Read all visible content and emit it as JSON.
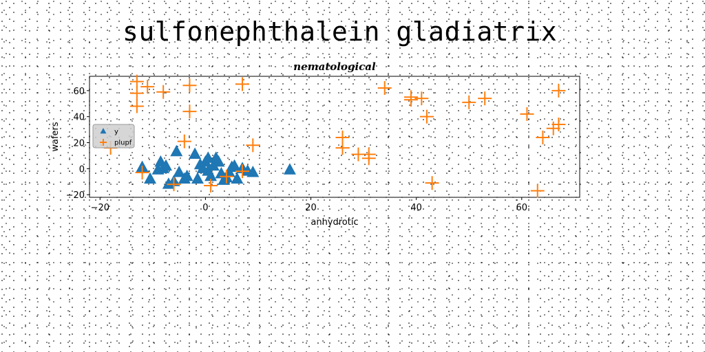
{
  "page_title": "sulfonephthalein gladiatrix",
  "chart_data": {
    "type": "scatter",
    "title": "nematological",
    "xlabel": "anhydrotic",
    "ylabel": "wafers",
    "xlim": [
      -22,
      71
    ],
    "ylim": [
      -22,
      71
    ],
    "xticks": [
      -20,
      0,
      20,
      40,
      60
    ],
    "yticks": [
      -20,
      0,
      20,
      40,
      60
    ],
    "grid": false,
    "legend_position": "center-left",
    "series": [
      {
        "name": "y",
        "marker": "triangle",
        "color": "#1f77b4",
        "points": [
          [
            -12,
            1
          ],
          [
            -10.5,
            -8
          ],
          [
            -9,
            -1
          ],
          [
            -8.5,
            5
          ],
          [
            -8,
            0
          ],
          [
            -7.5,
            2
          ],
          [
            -7,
            -12
          ],
          [
            -6,
            -10
          ],
          [
            -5.5,
            13
          ],
          [
            -5,
            -3
          ],
          [
            -4,
            -8
          ],
          [
            -3.5,
            -6
          ],
          [
            -2,
            11
          ],
          [
            -1.5,
            -8
          ],
          [
            -1,
            3
          ],
          [
            -0.5,
            0
          ],
          [
            0,
            5
          ],
          [
            0.5,
            -2
          ],
          [
            0.5,
            8
          ],
          [
            1,
            -6
          ],
          [
            1.5,
            2
          ],
          [
            2,
            8
          ],
          [
            2.5,
            5
          ],
          [
            3,
            -4
          ],
          [
            3.5,
            -9
          ],
          [
            4,
            -7
          ],
          [
            4.5,
            -3
          ],
          [
            5,
            1
          ],
          [
            5.5,
            2
          ],
          [
            6,
            -8
          ],
          [
            7,
            0
          ],
          [
            8,
            -2
          ],
          [
            9,
            -3
          ],
          [
            16,
            -1
          ]
        ]
      },
      {
        "name": "plupf",
        "marker": "plus",
        "color": "#ff7f0e",
        "points": [
          [
            -13,
            67
          ],
          [
            -13,
            58
          ],
          [
            -13,
            48
          ],
          [
            -11,
            63
          ],
          [
            -8,
            59
          ],
          [
            -3,
            64
          ],
          [
            -3,
            44
          ],
          [
            -4,
            21
          ],
          [
            -18,
            16
          ],
          [
            -12,
            -3
          ],
          [
            -6,
            -12
          ],
          [
            1,
            -13
          ],
          [
            4,
            -6
          ],
          [
            7,
            -2
          ],
          [
            7,
            65
          ],
          [
            9,
            18
          ],
          [
            26,
            24
          ],
          [
            26,
            16
          ],
          [
            29,
            11
          ],
          [
            31,
            11
          ],
          [
            31,
            8
          ],
          [
            34,
            62
          ],
          [
            39,
            55
          ],
          [
            39,
            53
          ],
          [
            41,
            54
          ],
          [
            42,
            40
          ],
          [
            43,
            -11
          ],
          [
            50,
            51
          ],
          [
            53,
            54
          ],
          [
            61,
            42
          ],
          [
            63,
            -17
          ],
          [
            64,
            24
          ],
          [
            66,
            31
          ],
          [
            67,
            34
          ],
          [
            67,
            60
          ]
        ]
      }
    ]
  }
}
